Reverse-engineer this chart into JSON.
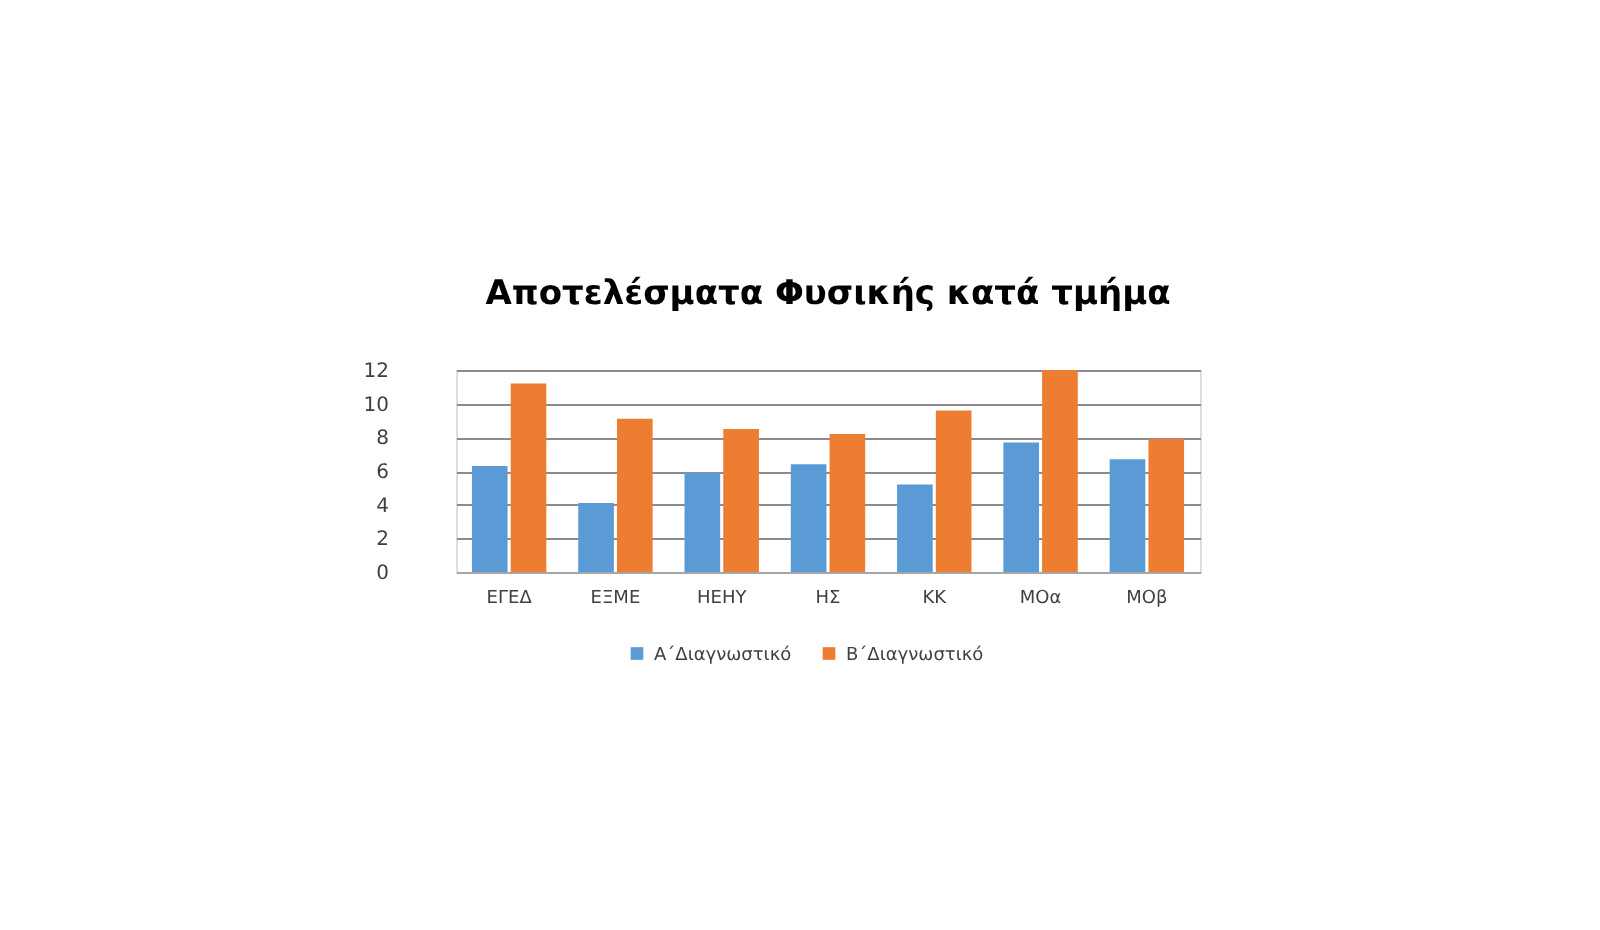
{
  "chart_data": {
    "type": "bar",
    "title": "Αποτελέσματα Φυσικής κατά τμήμα",
    "categories": [
      "ΕΓΕΔ",
      "ΕΞΜΕ",
      "ΗΕΗΥ",
      "ΗΣ",
      "ΚΚ",
      "ΜΟα",
      "ΜΟβ"
    ],
    "series": [
      {
        "name": "Α΄Διαγνωστικό",
        "color": "#5b9bd5",
        "values": [
          6.3,
          4.1,
          5.9,
          6.4,
          5.2,
          7.7,
          6.7
        ]
      },
      {
        "name": "Β΄Διαγνωστικό",
        "color": "#ed7d31",
        "values": [
          11.2,
          9.1,
          8.5,
          8.2,
          9.6,
          12.0,
          7.9
        ]
      }
    ],
    "ylim": [
      0,
      12
    ],
    "yticks": [
      0,
      2,
      4,
      6,
      8,
      10,
      12
    ],
    "grid": "y",
    "legend": "bottom"
  }
}
